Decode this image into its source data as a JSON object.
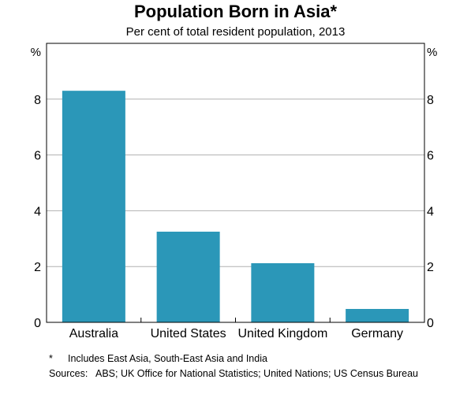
{
  "title": "Population Born in Asia*",
  "subtitle": "Per cent of total resident population, 2013",
  "chart_data": {
    "type": "bar",
    "title": "Population Born in Asia*",
    "subtitle": "Per cent of total resident population, 2013",
    "categories": [
      "Australia",
      "United States",
      "United Kingdom",
      "Germany"
    ],
    "values": [
      8.3,
      3.25,
      2.12,
      0.48
    ],
    "ylim": [
      0,
      10
    ],
    "yticks": [
      0,
      2,
      4,
      6,
      8
    ],
    "y_unit_left": "%",
    "y_unit_right": "%",
    "grid": true,
    "bar_color": "#2b97b8"
  },
  "notes": {
    "footnote_mark": "*",
    "footnote_text": "Includes East Asia, South-East Asia and India",
    "sources_label": "Sources:",
    "sources_text": "ABS; UK Office for National Statistics; United Nations; US Census Bureau"
  }
}
